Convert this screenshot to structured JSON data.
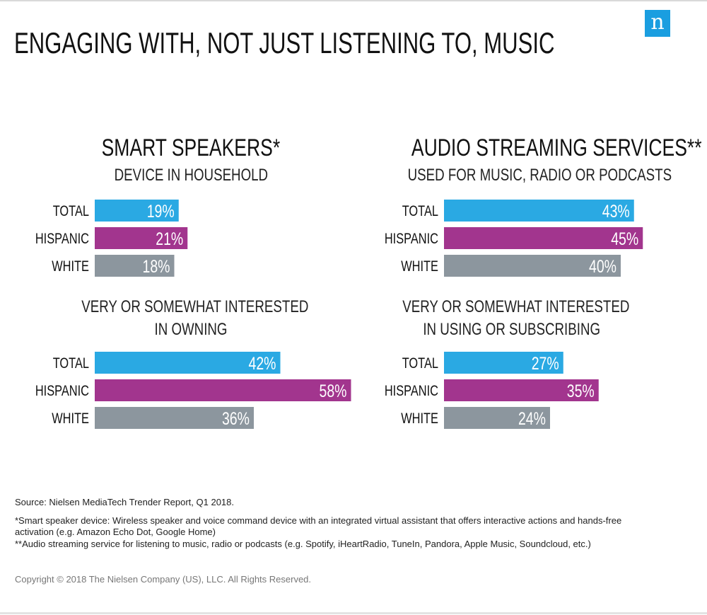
{
  "page": {
    "title": "ENGAGING WITH, NOT JUST LISTENING TO, MUSIC",
    "logo_text": "n"
  },
  "colors": {
    "total": "#2aa9e3",
    "hispanic": "#a2358e",
    "white": "#8c969e",
    "logo": "#1a9ee0"
  },
  "chart_data": [
    {
      "type": "bar",
      "title": "SMART SPEAKERS*",
      "subtitle": "DEVICE IN HOUSEHOLD",
      "categories": [
        "TOTAL",
        "HISPANIC",
        "WHITE"
      ],
      "values": [
        19,
        21,
        18
      ],
      "labels": [
        "19%",
        "21%",
        "18%"
      ]
    },
    {
      "type": "bar",
      "title": "",
      "subtitle": "VERY OR SOMEWHAT INTERESTED IN OWNING",
      "categories": [
        "TOTAL",
        "HISPANIC",
        "WHITE"
      ],
      "values": [
        42,
        58,
        36
      ],
      "labels": [
        "42%",
        "58%",
        "36%"
      ]
    },
    {
      "type": "bar",
      "title": "AUDIO STREAMING SERVICES**",
      "subtitle": "USED FOR MUSIC, RADIO OR PODCASTS",
      "categories": [
        "TOTAL",
        "HISPANIC",
        "WHITE"
      ],
      "values": [
        43,
        45,
        40
      ],
      "labels": [
        "43%",
        "45%",
        "40%"
      ]
    },
    {
      "type": "bar",
      "title": "",
      "subtitle": "VERY OR SOMEWHAT INTERESTED IN USING OR SUBSCRIBING",
      "categories": [
        "TOTAL",
        "HISPANIC",
        "WHITE"
      ],
      "values": [
        27,
        35,
        24
      ],
      "labels": [
        "27%",
        "35%",
        "24%"
      ]
    }
  ],
  "headings": {
    "left_title": "SMART SPEAKERS*",
    "left_sub1": "DEVICE IN HOUSEHOLD",
    "left_sub2_line1": "VERY OR SOMEWHAT INTERESTED",
    "left_sub2_line2": "IN OWNING",
    "right_title": "AUDIO STREAMING SERVICES**",
    "right_sub1": "USED FOR MUSIC, RADIO OR PODCASTS",
    "right_sub2_line1": "VERY OR SOMEWHAT INTERESTED",
    "right_sub2_line2": "IN USING OR SUBSCRIBING"
  },
  "footnotes": {
    "source": "Source: Nielsen MediaTech Trender Report, Q1 2018.",
    "smart_speaker": "*Smart speaker device: Wireless speaker and voice command device with an integrated virtual assistant that offers interactive actions and hands-free activation (e.g. Amazon Echo Dot, Google Home)",
    "audio_streaming": "**Audio streaming service for listening to music, radio or podcasts (e.g. Spotify, iHeartRadio, TuneIn, Pandora, Apple Music, Soundcloud, etc.)",
    "copyright": "Copyright © 2018 The Nielsen Company (US), LLC. All Rights Reserved."
  }
}
